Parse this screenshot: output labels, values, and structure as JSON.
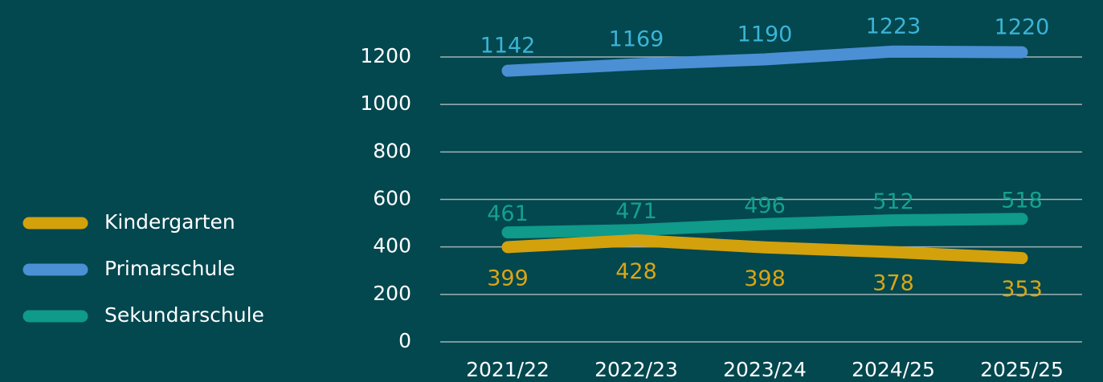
{
  "chart_data": {
    "type": "line",
    "categories": [
      "2021/22",
      "2022/23",
      "2023/24",
      "2024/25",
      "2025/25"
    ],
    "series": [
      {
        "name": "Kindergarten",
        "color": "#d3a10c",
        "label_color": "#d9a614",
        "values": [
          399,
          428,
          398,
          378,
          353
        ]
      },
      {
        "name": "Primarschule",
        "color": "#4b8fd4",
        "label_color": "#3bb4d6",
        "values": [
          1142,
          1169,
          1190,
          1223,
          1220
        ]
      },
      {
        "name": "Sekundarschule",
        "color": "#0f9a89",
        "label_color": "#16a08e",
        "values": [
          461,
          471,
          496,
          512,
          518
        ]
      }
    ],
    "ylim": [
      0,
      1200
    ],
    "yticks": [
      0,
      200,
      400,
      600,
      800,
      1000,
      1200
    ],
    "grid": true,
    "legend": "left"
  }
}
